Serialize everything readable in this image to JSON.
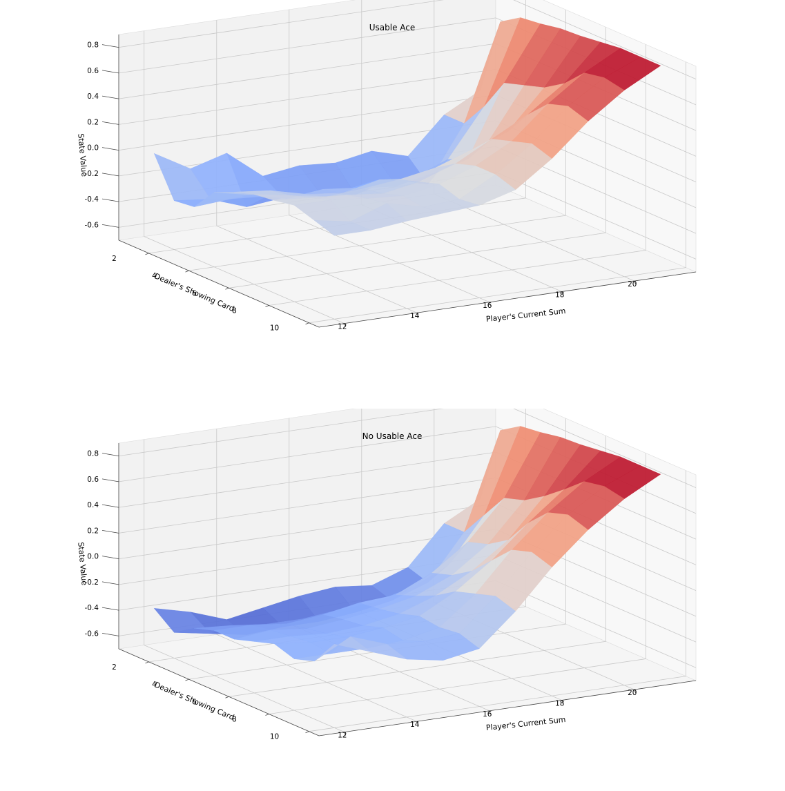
{
  "chart_data": [
    {
      "type": "surface3d",
      "title": "Usable Ace",
      "xlabel": "Player's Current Sum",
      "ylabel": "Dealer's Showing Card",
      "zlabel": "State Value",
      "x": [
        12,
        13,
        14,
        15,
        16,
        17,
        18,
        19,
        20,
        21
      ],
      "y": [
        1,
        2,
        3,
        4,
        5,
        6,
        7,
        8,
        9,
        10
      ],
      "xticks": [
        "12",
        "14",
        "16",
        "18",
        "20"
      ],
      "yticks": [
        "2",
        "4",
        "6",
        "8",
        "10"
      ],
      "zticks": [
        "-0.6",
        "-0.4",
        "-0.2",
        "0.0",
        "0.2",
        "0.4",
        "0.6",
        "0.8"
      ],
      "zlim": [
        -0.7,
        0.9
      ],
      "colormap": "coolwarm",
      "values": [
        [
          -0.02,
          -0.18,
          -0.1,
          -0.32,
          -0.28,
          -0.3,
          -0.25,
          -0.33,
          -0.05,
          0.1
        ],
        [
          -0.32,
          -0.35,
          -0.45,
          -0.42,
          -0.42,
          -0.48,
          -0.4,
          -0.48,
          -0.05,
          0.7
        ],
        [
          -0.3,
          -0.28,
          -0.3,
          -0.33,
          -0.35,
          -0.3,
          -0.33,
          -0.22,
          0.15,
          0.8
        ],
        [
          -0.12,
          -0.18,
          -0.25,
          -0.22,
          -0.25,
          -0.28,
          -0.22,
          -0.15,
          0.4,
          0.82
        ],
        [
          -0.05,
          -0.08,
          -0.15,
          -0.18,
          -0.12,
          -0.15,
          -0.05,
          0.05,
          0.45,
          0.85
        ],
        [
          0.0,
          -0.05,
          -0.1,
          -0.08,
          -0.05,
          0.0,
          0.1,
          0.2,
          0.5,
          0.86
        ],
        [
          0.02,
          0.0,
          -0.02,
          -0.05,
          0.0,
          0.1,
          0.25,
          0.4,
          0.6,
          0.88
        ],
        [
          0.05,
          0.05,
          0.02,
          0.0,
          0.05,
          0.15,
          0.3,
          0.55,
          0.75,
          0.9
        ],
        [
          0.0,
          -0.05,
          0.05,
          -0.02,
          0.0,
          0.15,
          0.35,
          0.6,
          0.78,
          0.9
        ],
        [
          -0.05,
          -0.05,
          -0.02,
          0.0,
          0.02,
          0.1,
          0.3,
          0.55,
          0.75,
          0.9
        ]
      ]
    },
    {
      "type": "surface3d",
      "title": "No Usable Ace",
      "xlabel": "Player's Current Sum",
      "ylabel": "Dealer's Showing Card",
      "zlabel": "State Value",
      "x": [
        12,
        13,
        14,
        15,
        16,
        17,
        18,
        19,
        20,
        21
      ],
      "y": [
        1,
        2,
        3,
        4,
        5,
        6,
        7,
        8,
        9,
        10
      ],
      "xticks": [
        "12",
        "14",
        "16",
        "18",
        "20"
      ],
      "yticks": [
        "2",
        "4",
        "6",
        "8",
        "10"
      ],
      "zticks": [
        "-0.6",
        "-0.4",
        "-0.2",
        "0.0",
        "0.2",
        "0.4",
        "0.6",
        "0.8"
      ],
      "zlim": [
        -0.7,
        0.9
      ],
      "colormap": "coolwarm",
      "values": [
        [
          -0.38,
          -0.45,
          -0.55,
          -0.5,
          -0.45,
          -0.42,
          -0.45,
          -0.35,
          -0.05,
          0.1
        ],
        [
          -0.5,
          -0.55,
          -0.6,
          -0.58,
          -0.58,
          -0.55,
          -0.5,
          -0.4,
          -0.05,
          0.7
        ],
        [
          -0.4,
          -0.42,
          -0.45,
          -0.45,
          -0.42,
          -0.4,
          -0.33,
          -0.2,
          0.15,
          0.8
        ],
        [
          -0.35,
          -0.35,
          -0.38,
          -0.35,
          -0.3,
          -0.28,
          -0.15,
          0.05,
          0.35,
          0.82
        ],
        [
          -0.35,
          -0.32,
          -0.35,
          -0.32,
          -0.28,
          -0.22,
          -0.1,
          0.1,
          0.4,
          0.85
        ],
        [
          -0.3,
          -0.3,
          -0.32,
          -0.3,
          -0.25,
          -0.15,
          0.0,
          0.2,
          0.5,
          0.86
        ],
        [
          -0.25,
          -0.28,
          -0.28,
          -0.25,
          -0.2,
          -0.05,
          0.15,
          0.4,
          0.62,
          0.88
        ],
        [
          -0.3,
          -0.3,
          -0.3,
          -0.28,
          -0.22,
          0.0,
          0.3,
          0.55,
          0.75,
          0.9
        ],
        [
          -0.25,
          -0.1,
          -0.2,
          -0.22,
          -0.2,
          0.05,
          0.35,
          0.6,
          0.78,
          0.9
        ],
        [
          -0.05,
          -0.15,
          -0.25,
          -0.3,
          -0.25,
          0.0,
          0.3,
          0.55,
          0.75,
          0.9
        ]
      ]
    }
  ]
}
